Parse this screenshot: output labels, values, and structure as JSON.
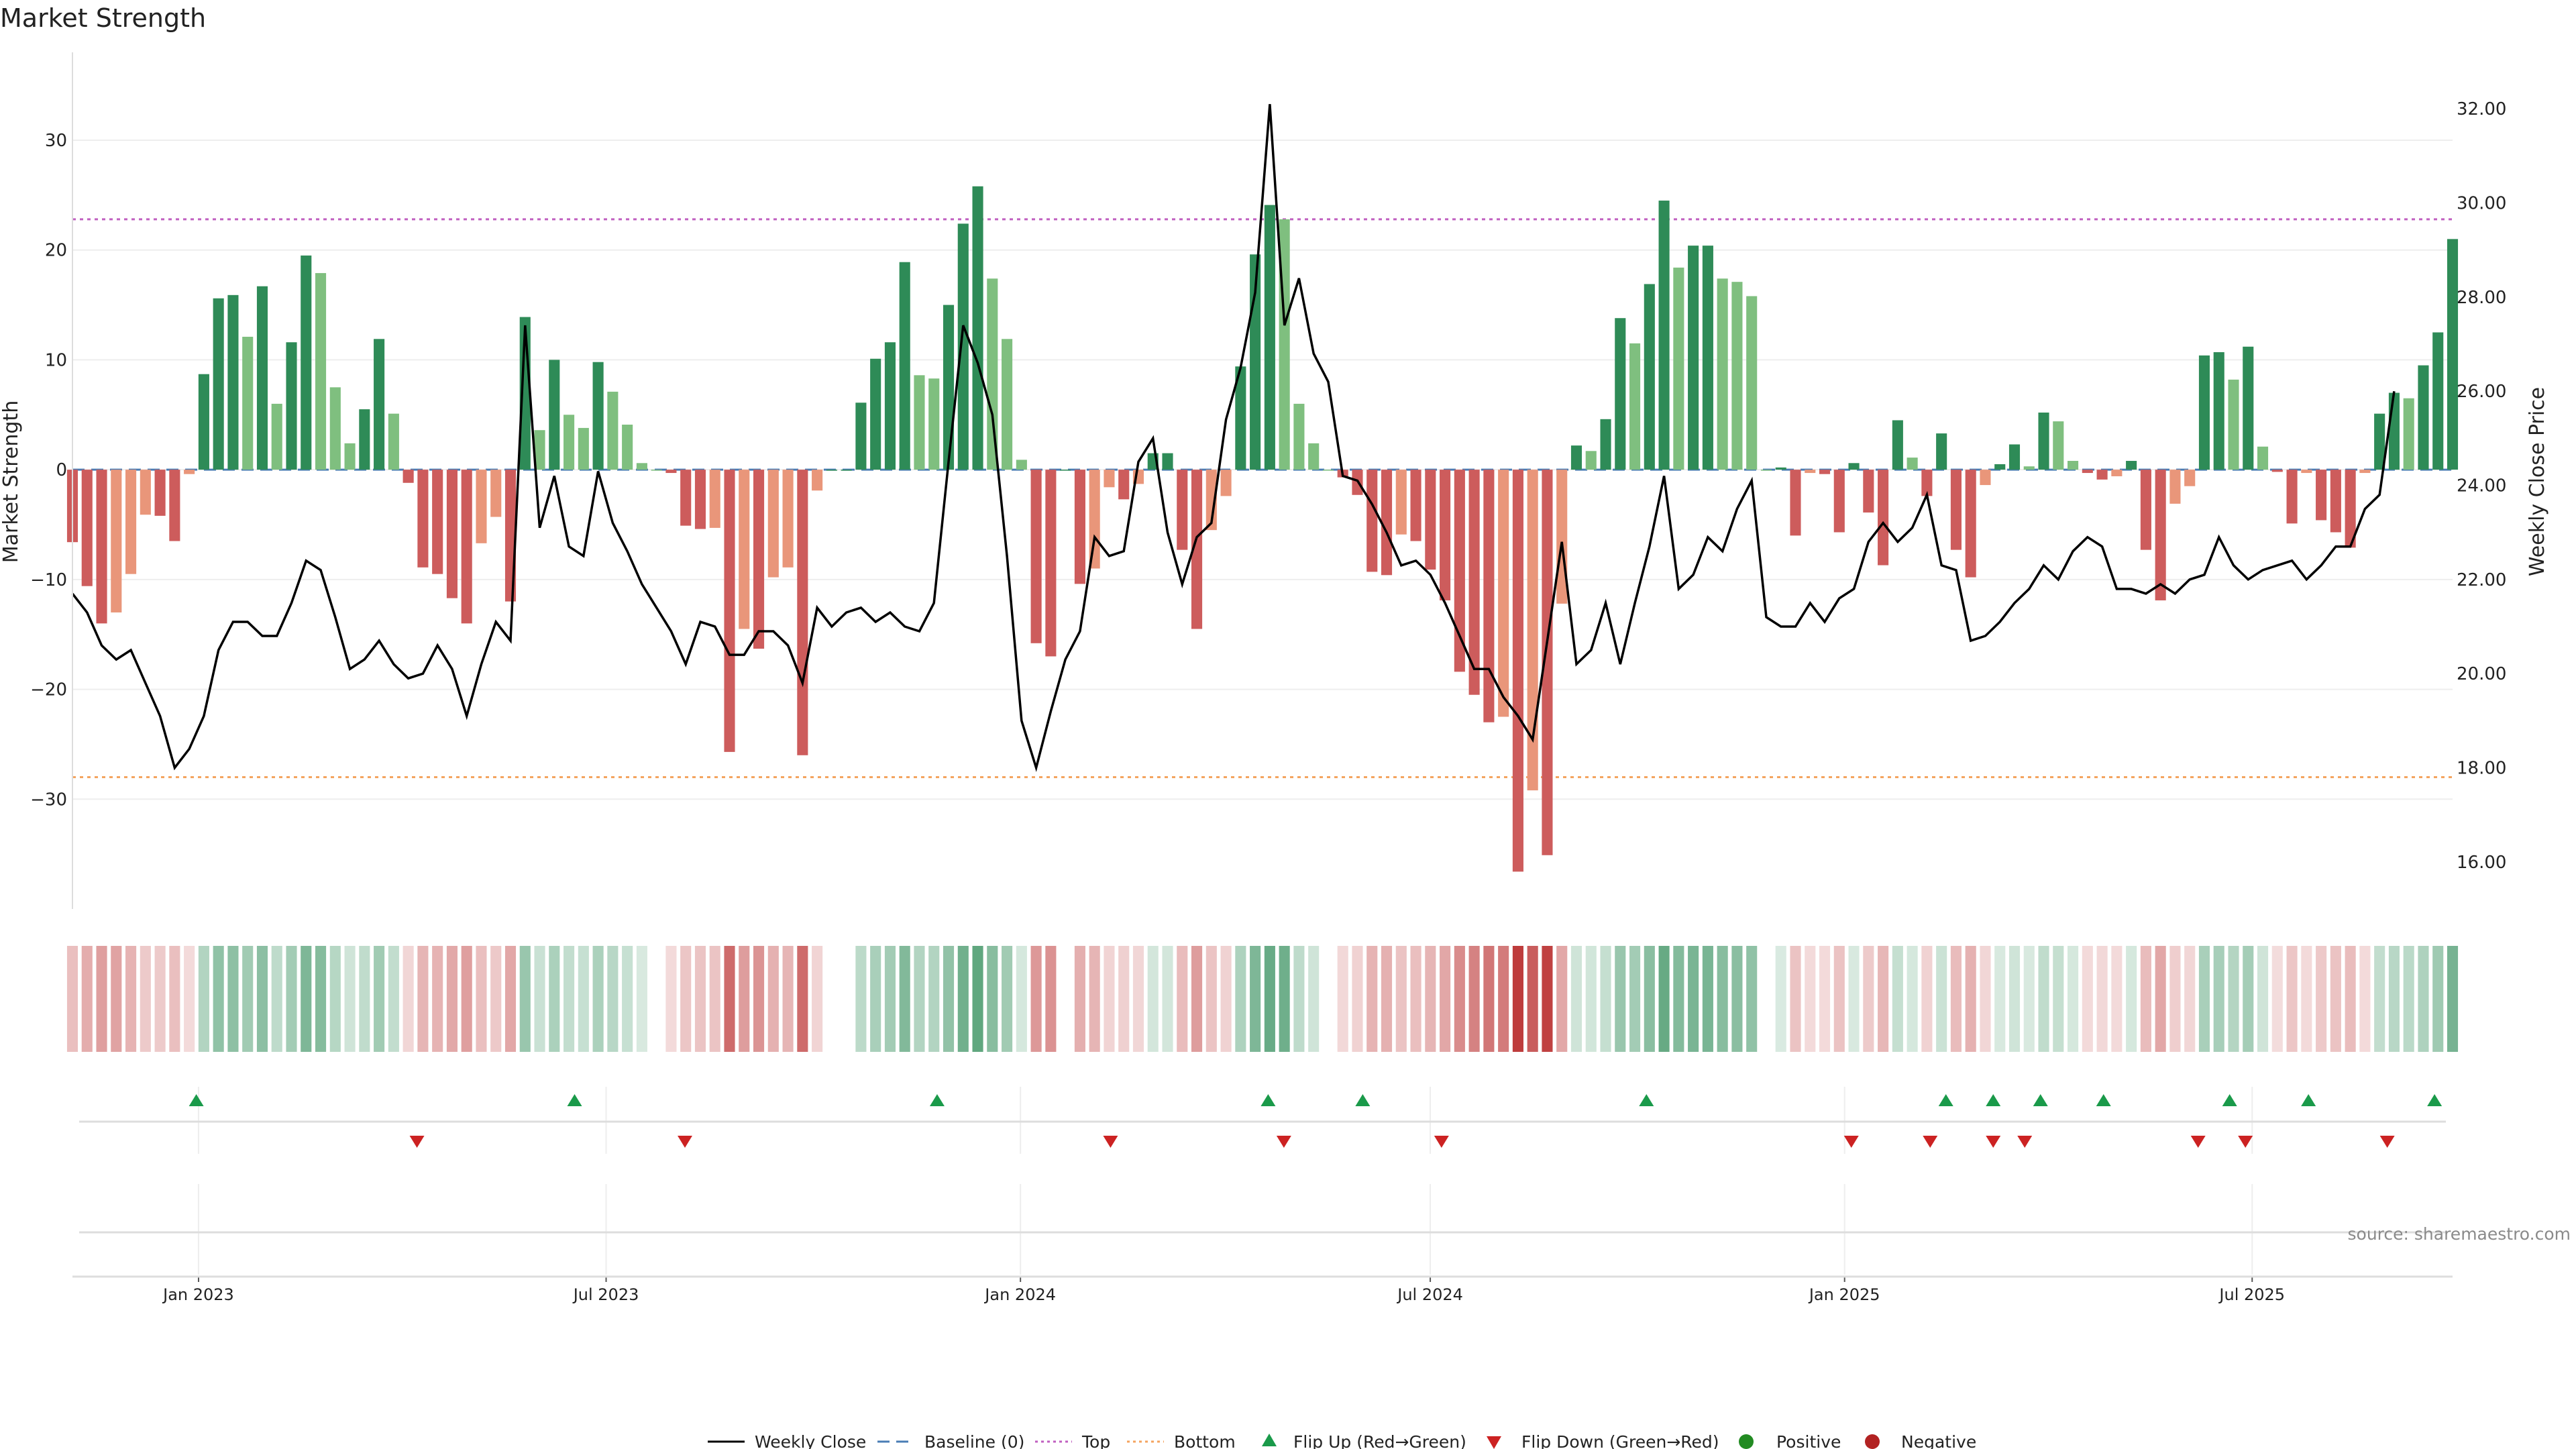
{
  "title": "Market Strength",
  "source": "source: sharemaestro.com",
  "chart_data": {
    "type": "bar+line",
    "title": "Market Strength",
    "ylabel_left": "Market Strength",
    "ylabel_right": "Weekly Close Price",
    "ylim_left": [
      -40,
      38
    ],
    "ylim_right": [
      15.0,
      33.2
    ],
    "yticks_left": [
      "30",
      "20",
      "10",
      "0",
      "−10",
      "−20",
      "−30"
    ],
    "yticks_right": [
      "32.00",
      "30.00",
      "28.00",
      "26.00",
      "24.00",
      "22.00",
      "20.00",
      "18.00",
      "16.00"
    ],
    "x_start": "2022-11-06",
    "x_end": "2025-09-28",
    "x_ticks": [
      "Jan 2023",
      "Jul 2023",
      "Jan 2024",
      "Jul 2024",
      "Jan 2025",
      "Jul 2025"
    ],
    "top_level": 22.8,
    "bottom_level": -28.0,
    "baseline": 0,
    "strength_values": [
      -6.6,
      -10.6,
      -14.0,
      -13.0,
      -9.5,
      -4.1,
      -4.2,
      -6.5,
      -0.4,
      8.7,
      15.6,
      15.9,
      12.1,
      16.7,
      6.0,
      11.6,
      19.5,
      17.9,
      7.5,
      2.4,
      5.5,
      11.9,
      5.1,
      -1.2,
      -8.9,
      -9.5,
      -11.7,
      -14.0,
      -6.7,
      -4.3,
      -12.0,
      13.9,
      3.6,
      10.0,
      5.0,
      3.8,
      9.8,
      7.1,
      4.1,
      0.6,
      0.0,
      -0.3,
      -5.1,
      -5.4,
      -5.3,
      -25.7,
      -14.5,
      -16.3,
      -9.8,
      -8.9,
      -26.0,
      -1.9,
      0.0,
      0.0,
      6.1,
      10.1,
      11.6,
      18.9,
      8.6,
      8.3,
      15.0,
      22.4,
      25.8,
      17.4,
      11.9,
      0.9,
      -15.8,
      -17.0,
      0.0,
      -10.4,
      -9.0,
      -1.6,
      -2.7,
      -1.3,
      1.5,
      1.5,
      -7.3,
      -14.5,
      -5.5,
      -2.4,
      9.4,
      19.6,
      24.1,
      22.8,
      6.0,
      2.4,
      0.0,
      -0.7,
      -2.3,
      -9.3,
      -9.6,
      -5.9,
      -6.5,
      -9.1,
      -11.9,
      -18.4,
      -20.5,
      -23.0,
      -22.5,
      -36.6,
      -29.2,
      -35.1,
      -12.2,
      2.2,
      1.7,
      4.6,
      13.8,
      11.5,
      16.9,
      24.5,
      18.4,
      20.4,
      20.4,
      17.4,
      17.1,
      15.8,
      0.0,
      0.2,
      -6.0,
      -0.3,
      -0.4,
      -5.7,
      0.6,
      -3.9,
      -8.7,
      4.5,
      1.1,
      -2.4,
      3.3,
      -7.3,
      -9.8,
      -1.4,
      0.5,
      2.3,
      0.3,
      5.2,
      4.4,
      0.8,
      -0.3,
      -0.9,
      -0.6,
      0.8,
      -7.3,
      -11.9,
      -3.1,
      -1.5,
      10.4,
      10.7,
      8.2,
      11.2,
      2.1,
      -0.2,
      -4.9,
      -0.3,
      -4.6,
      -5.7,
      -7.1,
      -0.3,
      5.1,
      7.0,
      6.5,
      9.5,
      12.5,
      21.0
    ],
    "close_values": [
      21.7,
      21.3,
      20.6,
      20.3,
      20.5,
      19.8,
      19.1,
      18.0,
      18.4,
      19.1,
      20.5,
      21.1,
      21.1,
      20.8,
      20.8,
      21.5,
      22.4,
      22.2,
      21.2,
      20.1,
      20.3,
      20.7,
      20.2,
      19.9,
      20.0,
      20.6,
      20.1,
      19.1,
      20.2,
      21.1,
      20.7,
      27.4,
      23.1,
      24.2,
      22.7,
      22.5,
      24.3,
      23.2,
      22.6,
      21.9,
      21.4,
      20.9,
      20.2,
      21.1,
      21.0,
      20.4,
      20.4,
      20.9,
      20.9,
      20.6,
      19.8,
      21.4,
      21.0,
      21.3,
      21.4,
      21.1,
      21.3,
      21.0,
      20.9,
      21.5,
      24.5,
      27.4,
      26.6,
      25.5,
      22.5,
      19.0,
      18.0,
      19.2,
      20.3,
      20.9,
      22.9,
      22.5,
      22.6,
      24.5,
      25.0,
      23.0,
      21.9,
      22.9,
      23.2,
      25.4,
      26.5,
      28.1,
      32.1,
      27.4,
      28.4,
      26.8,
      26.2,
      24.2,
      24.1,
      23.6,
      23.0,
      22.3,
      22.4,
      22.1,
      21.5,
      20.8,
      20.1,
      20.1,
      19.5,
      19.1,
      18.6,
      20.7,
      22.8,
      20.2,
      20.5,
      21.5,
      20.2,
      21.5,
      22.7,
      24.2,
      21.8,
      22.1,
      22.9,
      22.6,
      23.5,
      24.1,
      21.2,
      21.0,
      21.0,
      21.5,
      21.1,
      21.6,
      21.8,
      22.8,
      23.2,
      22.8,
      23.1,
      23.8,
      22.3,
      22.2,
      20.7,
      20.8,
      21.1,
      21.5,
      21.8,
      22.3,
      22.0,
      22.6,
      22.9,
      22.7,
      21.8,
      21.8,
      21.7,
      21.9,
      21.7,
      22.0,
      22.1,
      22.9,
      22.3,
      22.0,
      22.2,
      22.3,
      22.4,
      22.0,
      22.3,
      22.7,
      22.7,
      23.5,
      23.8,
      26.0
    ]
  },
  "flips": {
    "up_dates": [
      "2022-12-31",
      "2023-06-17",
      "2023-11-25",
      "2024-04-20",
      "2024-06-01",
      "2024-10-05",
      "2025-02-15",
      "2025-03-08",
      "2025-03-29",
      "2025-04-26",
      "2025-06-21",
      "2025-07-26",
      "2025-09-20"
    ],
    "down_dates": [
      "2023-04-08",
      "2023-08-05",
      "2024-02-10",
      "2024-04-27",
      "2024-07-06",
      "2025-01-04",
      "2025-02-08",
      "2025-03-08",
      "2025-03-22",
      "2025-06-07",
      "2025-06-28",
      "2025-08-30"
    ]
  },
  "colors": {
    "strong_green": "#2e8b57",
    "light_green": "#7fbf7f",
    "strong_red": "#cd5c5c",
    "light_red": "#e9967a",
    "close_line": "#000000",
    "baseline": "#4a7db5",
    "top_line": "#c060c0",
    "bottom_line": "#f4a460",
    "flip_up": "#1a9a4a",
    "flip_down": "#cc2222",
    "positive": "#228b22",
    "negative": "#b22222"
  },
  "legend": {
    "weekly_close": "Weekly Close",
    "baseline": "Baseline (0)",
    "top": "Top",
    "bottom": "Bottom",
    "flip_up": "Flip Up (Red→Green)",
    "flip_down": "Flip Down (Green→Red)",
    "positive": "Positive",
    "negative": "Negative"
  }
}
